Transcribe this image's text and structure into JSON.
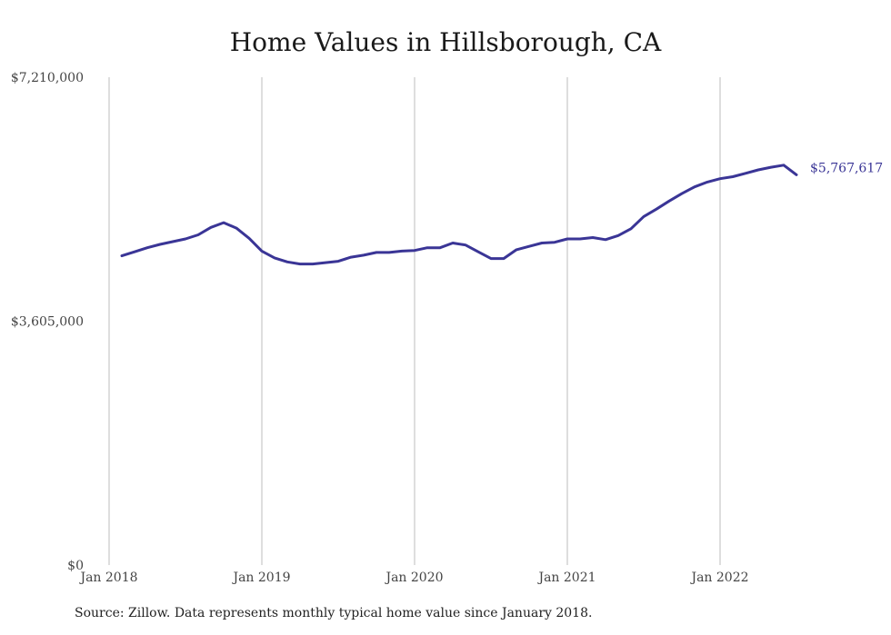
{
  "chart_data": {
    "type": "line",
    "title": "Home Values in Hillsborough, CA",
    "xlabel": "",
    "ylabel": "",
    "x_tick_labels": [
      "Jan 2018",
      "Jan 2019",
      "Jan 2020",
      "Jan 2021",
      "Jan 2022"
    ],
    "y_tick_labels": [
      "$0",
      "$3,605,000",
      "$7,210,000"
    ],
    "y_ticks": [
      0,
      3605000,
      7210000
    ],
    "ylim": [
      0,
      7210000
    ],
    "xlim": [
      "2018-01",
      "2022-07"
    ],
    "grid": "vertical gridlines at each year",
    "line_color": "#3a3596",
    "grid_color": "#bdbdbd",
    "end_label": "$5,767,617",
    "x": [
      "2018-02",
      "2018-03",
      "2018-04",
      "2018-05",
      "2018-06",
      "2018-07",
      "2018-08",
      "2018-09",
      "2018-10",
      "2018-11",
      "2018-12",
      "2019-01",
      "2019-02",
      "2019-03",
      "2019-04",
      "2019-05",
      "2019-06",
      "2019-07",
      "2019-08",
      "2019-09",
      "2019-10",
      "2019-11",
      "2019-12",
      "2020-01",
      "2020-02",
      "2020-03",
      "2020-04",
      "2020-05",
      "2020-06",
      "2020-07",
      "2020-08",
      "2020-09",
      "2020-10",
      "2020-11",
      "2020-12",
      "2021-01",
      "2021-02",
      "2021-03",
      "2021-04",
      "2021-05",
      "2021-06",
      "2021-07",
      "2021-08",
      "2021-09",
      "2021-10",
      "2021-11",
      "2021-12",
      "2022-01",
      "2022-02",
      "2022-03",
      "2022-04",
      "2022-05",
      "2022-06",
      "2022-07"
    ],
    "values": [
      4570000,
      4630000,
      4690000,
      4740000,
      4780000,
      4820000,
      4880000,
      4990000,
      5060000,
      4980000,
      4830000,
      4640000,
      4540000,
      4480000,
      4450000,
      4450000,
      4470000,
      4490000,
      4550000,
      4580000,
      4620000,
      4620000,
      4640000,
      4650000,
      4690000,
      4690000,
      4760000,
      4730000,
      4630000,
      4530000,
      4530000,
      4660000,
      4710000,
      4760000,
      4770000,
      4820000,
      4820000,
      4840000,
      4810000,
      4870000,
      4970000,
      5150000,
      5260000,
      5380000,
      5490000,
      5590000,
      5660000,
      5710000,
      5740000,
      5790000,
      5840000,
      5880000,
      5910000,
      5767617
    ]
  },
  "source_note": "Source: Zillow. Data represents monthly typical home value since January 2018."
}
